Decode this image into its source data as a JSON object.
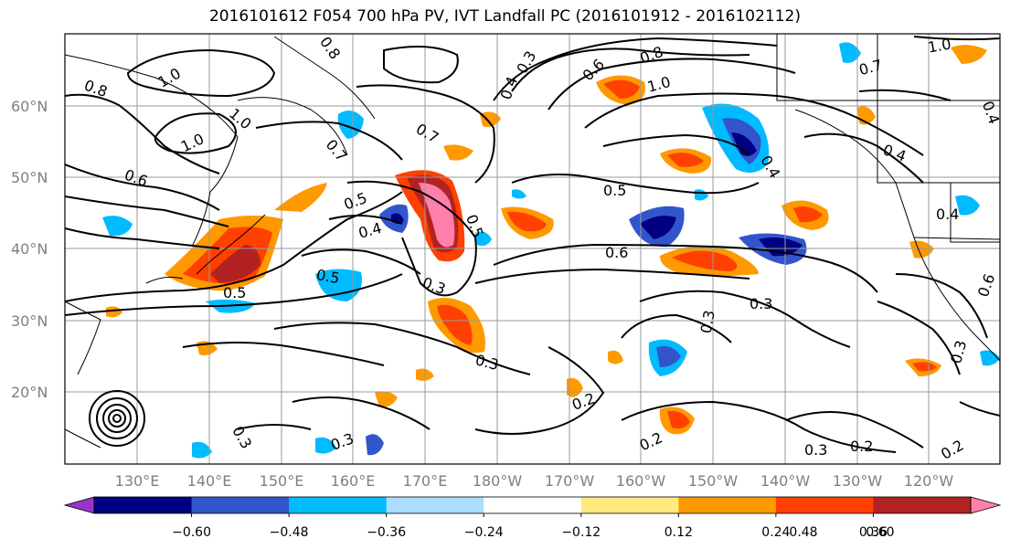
{
  "title": "2016101612 F054 700 hPa PV, IVT Landfall PC (2016101912 - 2016102112)",
  "latitude_labels": [
    "60°N",
    "50°N",
    "40°N",
    "30°N",
    "20°N"
  ],
  "longitude_labels": [
    "130°E",
    "140°E",
    "150°E",
    "160°E",
    "170°E",
    "180°W",
    "170°W",
    "160°W",
    "150°W",
    "140°W",
    "130°W",
    "120°W"
  ],
  "contour_labels": [
    "1.0",
    "0.8",
    "0.8",
    "1.0",
    "1.0",
    "0.7",
    "0.7",
    "0.4",
    "0.3",
    "0.6",
    "0.8",
    "1.0",
    "0.7",
    "1.0",
    "0.6",
    "0.5",
    "0.4",
    "0.5",
    "0.4",
    "0.3",
    "0.5",
    "0.5",
    "0.6",
    "0.3",
    "0.5",
    "0.3",
    "0.4",
    "0.6",
    "0.3",
    "0.2",
    "0.2",
    "0.3",
    "0.3",
    "0.2",
    "0.2",
    "0.3",
    "0.3",
    "0.4",
    "0.4"
  ],
  "colorbar": {
    "colors": [
      "#9933cc",
      "#000080",
      "#3355cc",
      "#00bbff",
      "#aaddff",
      "#ffffff",
      "#ffea80",
      "#ff9900",
      "#ff4000",
      "#b22222",
      "#ff80aa"
    ],
    "tick_labels": [
      "−0.60",
      "−0.48",
      "−0.36",
      "−0.24",
      "−0.12",
      "0.12",
      "0.24",
      "0.36",
      "0.48",
      "0.60"
    ]
  }
}
